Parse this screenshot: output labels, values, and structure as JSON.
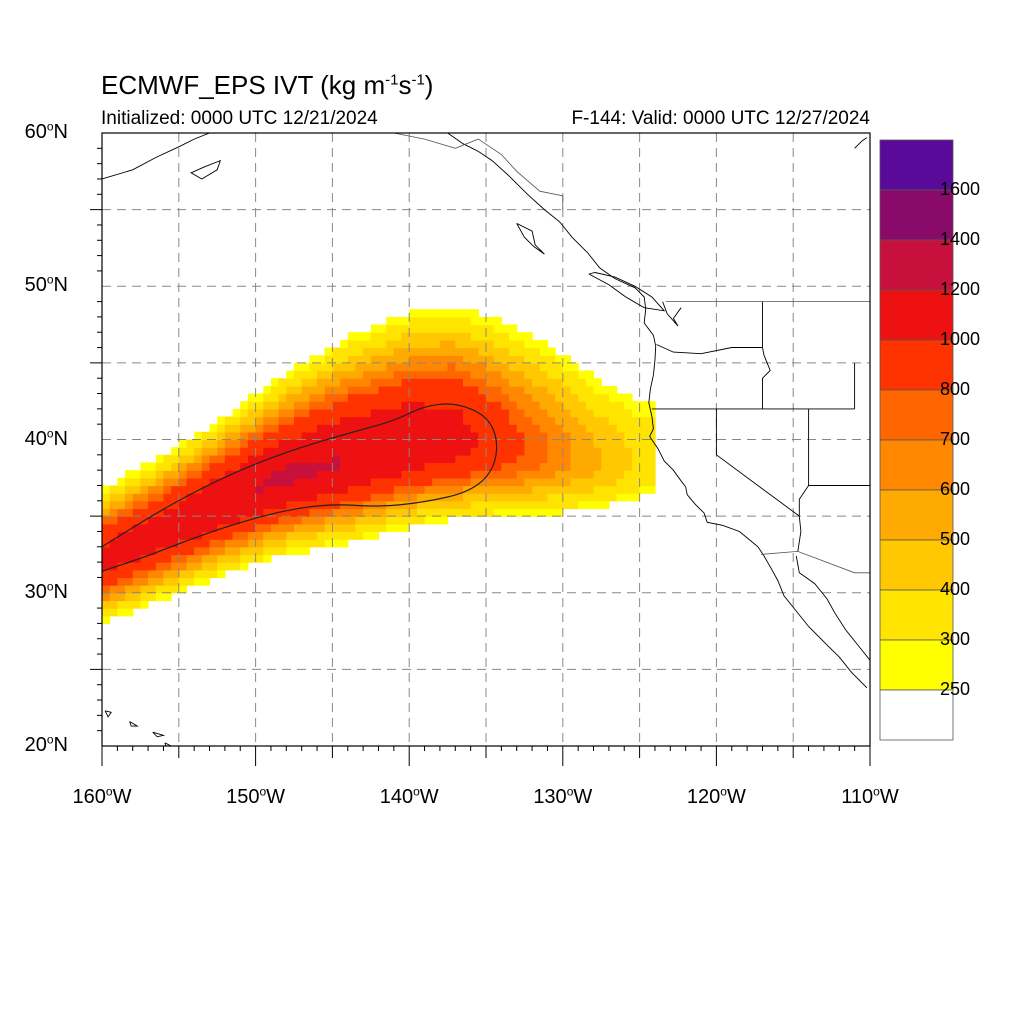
{
  "title": {
    "main": "ECMWF_EPS IVT (kg m",
    "exp1": "-1",
    "mid": "s",
    "exp2": "-1",
    "close": ")"
  },
  "subtitle_left": "Initialized: 0000 UTC 12/21/2024",
  "subtitle_right": "F-144: Valid: 0000 UTC 12/27/2024",
  "map": {
    "lon_range": [
      -160,
      -110
    ],
    "lat_range": [
      20,
      60
    ],
    "lat_ticks": [
      {
        "value": 60,
        "label": "60",
        "suffix": "N"
      },
      {
        "value": 50,
        "label": "50",
        "suffix": "N"
      },
      {
        "value": 40,
        "label": "40",
        "suffix": "N"
      },
      {
        "value": 30,
        "label": "30",
        "suffix": "N"
      },
      {
        "value": 20,
        "label": "20",
        "suffix": "N"
      }
    ],
    "lon_ticks": [
      {
        "value": -160,
        "label": "160",
        "suffix": "W"
      },
      {
        "value": -150,
        "label": "150",
        "suffix": "W"
      },
      {
        "value": -140,
        "label": "140",
        "suffix": "W"
      },
      {
        "value": -130,
        "label": "130",
        "suffix": "W"
      },
      {
        "value": -120,
        "label": "120",
        "suffix": "W"
      },
      {
        "value": -110,
        "label": "110",
        "suffix": "W"
      }
    ],
    "gridlines": "dashed gray every 5 degrees",
    "contour_value": 800
  },
  "colorbar": {
    "labels": [
      "1600",
      "1400",
      "1200",
      "1000",
      "800",
      "700",
      "600",
      "500",
      "400",
      "300",
      "250"
    ],
    "colors": [
      "#ffffff",
      "#ffff00",
      "#ffe400",
      "#ffc800",
      "#ffaa00",
      "#ff8800",
      "#ff6600",
      "#ff3300",
      "#ee1111",
      "#c8103c",
      "#8a0a6a",
      "#5a0a99"
    ],
    "levels": [
      250,
      300,
      400,
      500,
      600,
      700,
      800,
      1000,
      1200,
      1400,
      1600
    ]
  },
  "chart_data": {
    "type": "heatmap",
    "variable": "IVT",
    "units": "kg m-1 s-1",
    "plume": {
      "axis_points": [
        [
          -160,
          32.2
        ],
        [
          -156,
          34.0
        ],
        [
          -152,
          36.0
        ],
        [
          -148,
          37.6
        ],
        [
          -144,
          38.6
        ],
        [
          -140,
          39.6
        ],
        [
          -137,
          40.0
        ],
        [
          -134,
          39.6
        ],
        [
          -131,
          39.2
        ],
        [
          -128,
          38.6
        ],
        [
          -125,
          38.4
        ]
      ],
      "axis_values": [
        1050,
        1100,
        1180,
        1220,
        1200,
        1160,
        1080,
        900,
        700,
        520,
        380
      ],
      "north_halfwidth": [
        4.5,
        4.7,
        5.2,
        6.2,
        7.5,
        8.2,
        8.4,
        8.3,
        8.0,
        7.5,
        7.0
      ],
      "south_halfwidth": [
        4.0,
        4.2,
        4.5,
        4.7,
        5.0,
        5.0,
        5.0,
        4.8,
        4.6,
        4.2,
        3.8
      ]
    },
    "contour_800": [
      [
        -160,
        33.0
      ],
      [
        -156,
        35.5
      ],
      [
        -152,
        37.6
      ],
      [
        -148,
        39.2
      ],
      [
        -144,
        40.4
      ],
      [
        -141,
        41.2
      ],
      [
        -139,
        42.2
      ],
      [
        -137,
        42.4
      ],
      [
        -135,
        41.6
      ],
      [
        -134.2,
        40.0
      ],
      [
        -134.5,
        38.0
      ],
      [
        -136,
        36.6
      ],
      [
        -139,
        35.9
      ],
      [
        -142,
        35.6
      ],
      [
        -145,
        35.8
      ],
      [
        -148,
        35.4
      ],
      [
        -151,
        34.6
      ],
      [
        -154,
        33.6
      ],
      [
        -157,
        32.4
      ],
      [
        -160,
        31.4
      ]
    ]
  }
}
